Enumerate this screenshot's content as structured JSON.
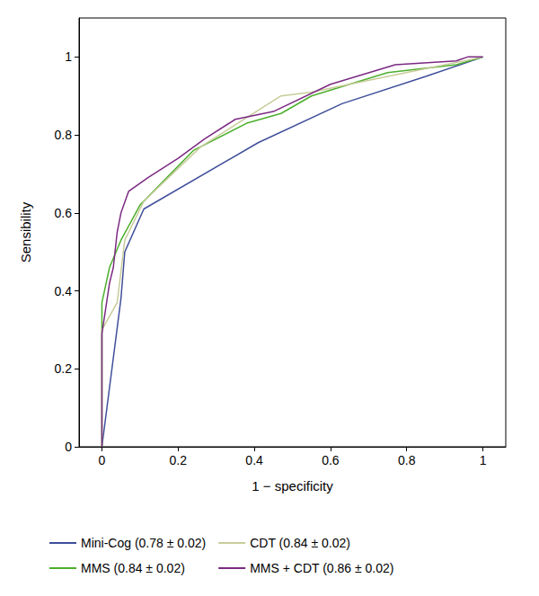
{
  "chart_data": {
    "type": "line",
    "x_label": "1 − specificity",
    "y_label": "Sensibility",
    "xlim": [
      -0.06,
      1.06
    ],
    "xticks": [
      0,
      0.2,
      0.4,
      0.6,
      0.8,
      1
    ],
    "ylim": [
      0,
      1.1
    ],
    "yticks": [
      0,
      0.2,
      0.4,
      0.6,
      0.8,
      1
    ],
    "grid": false,
    "legend": "bottom",
    "series": [
      {
        "name": "Mini-Cog (0.78 ± 0.02)",
        "color": "#3f4f9a",
        "x": [
          0,
          0.05,
          0.06,
          0.11,
          0.41,
          0.63,
          0.85,
          1
        ],
        "values": [
          0,
          0.38,
          0.5,
          0.61,
          0.78,
          0.88,
          0.95,
          1
        ]
      },
      {
        "name": "MMS (0.84 ± 0.02)",
        "color": "#4caf2c",
        "x": [
          0,
          0,
          0,
          0.02,
          0.05,
          0.1,
          0.24,
          0.38,
          0.47,
          0.55,
          0.75,
          0.93,
          1
        ],
        "values": [
          0,
          0.3,
          0.37,
          0.46,
          0.53,
          0.62,
          0.76,
          0.83,
          0.855,
          0.9,
          0.96,
          0.98,
          1
        ]
      },
      {
        "name": "CDT (0.84 ± 0.02)",
        "color": "#c8cc9a",
        "x": [
          0,
          0,
          0.04,
          0.06,
          0.11,
          0.26,
          0.47,
          0.55,
          0.75,
          1
        ],
        "values": [
          0,
          0.3,
          0.37,
          0.53,
          0.63,
          0.77,
          0.9,
          0.91,
          0.95,
          1
        ]
      },
      {
        "name": "MMS + CDT (0.86 ± 0.02)",
        "color": "#7b2a82",
        "x": [
          0,
          0,
          0.02,
          0.03,
          0.04,
          0.05,
          0.07,
          0.12,
          0.2,
          0.27,
          0.35,
          0.45,
          0.6,
          0.77,
          0.93,
          0.96,
          1
        ],
        "values": [
          0,
          0.29,
          0.42,
          0.46,
          0.55,
          0.6,
          0.655,
          0.69,
          0.74,
          0.79,
          0.84,
          0.86,
          0.93,
          0.98,
          0.99,
          1,
          1
        ]
      }
    ]
  }
}
